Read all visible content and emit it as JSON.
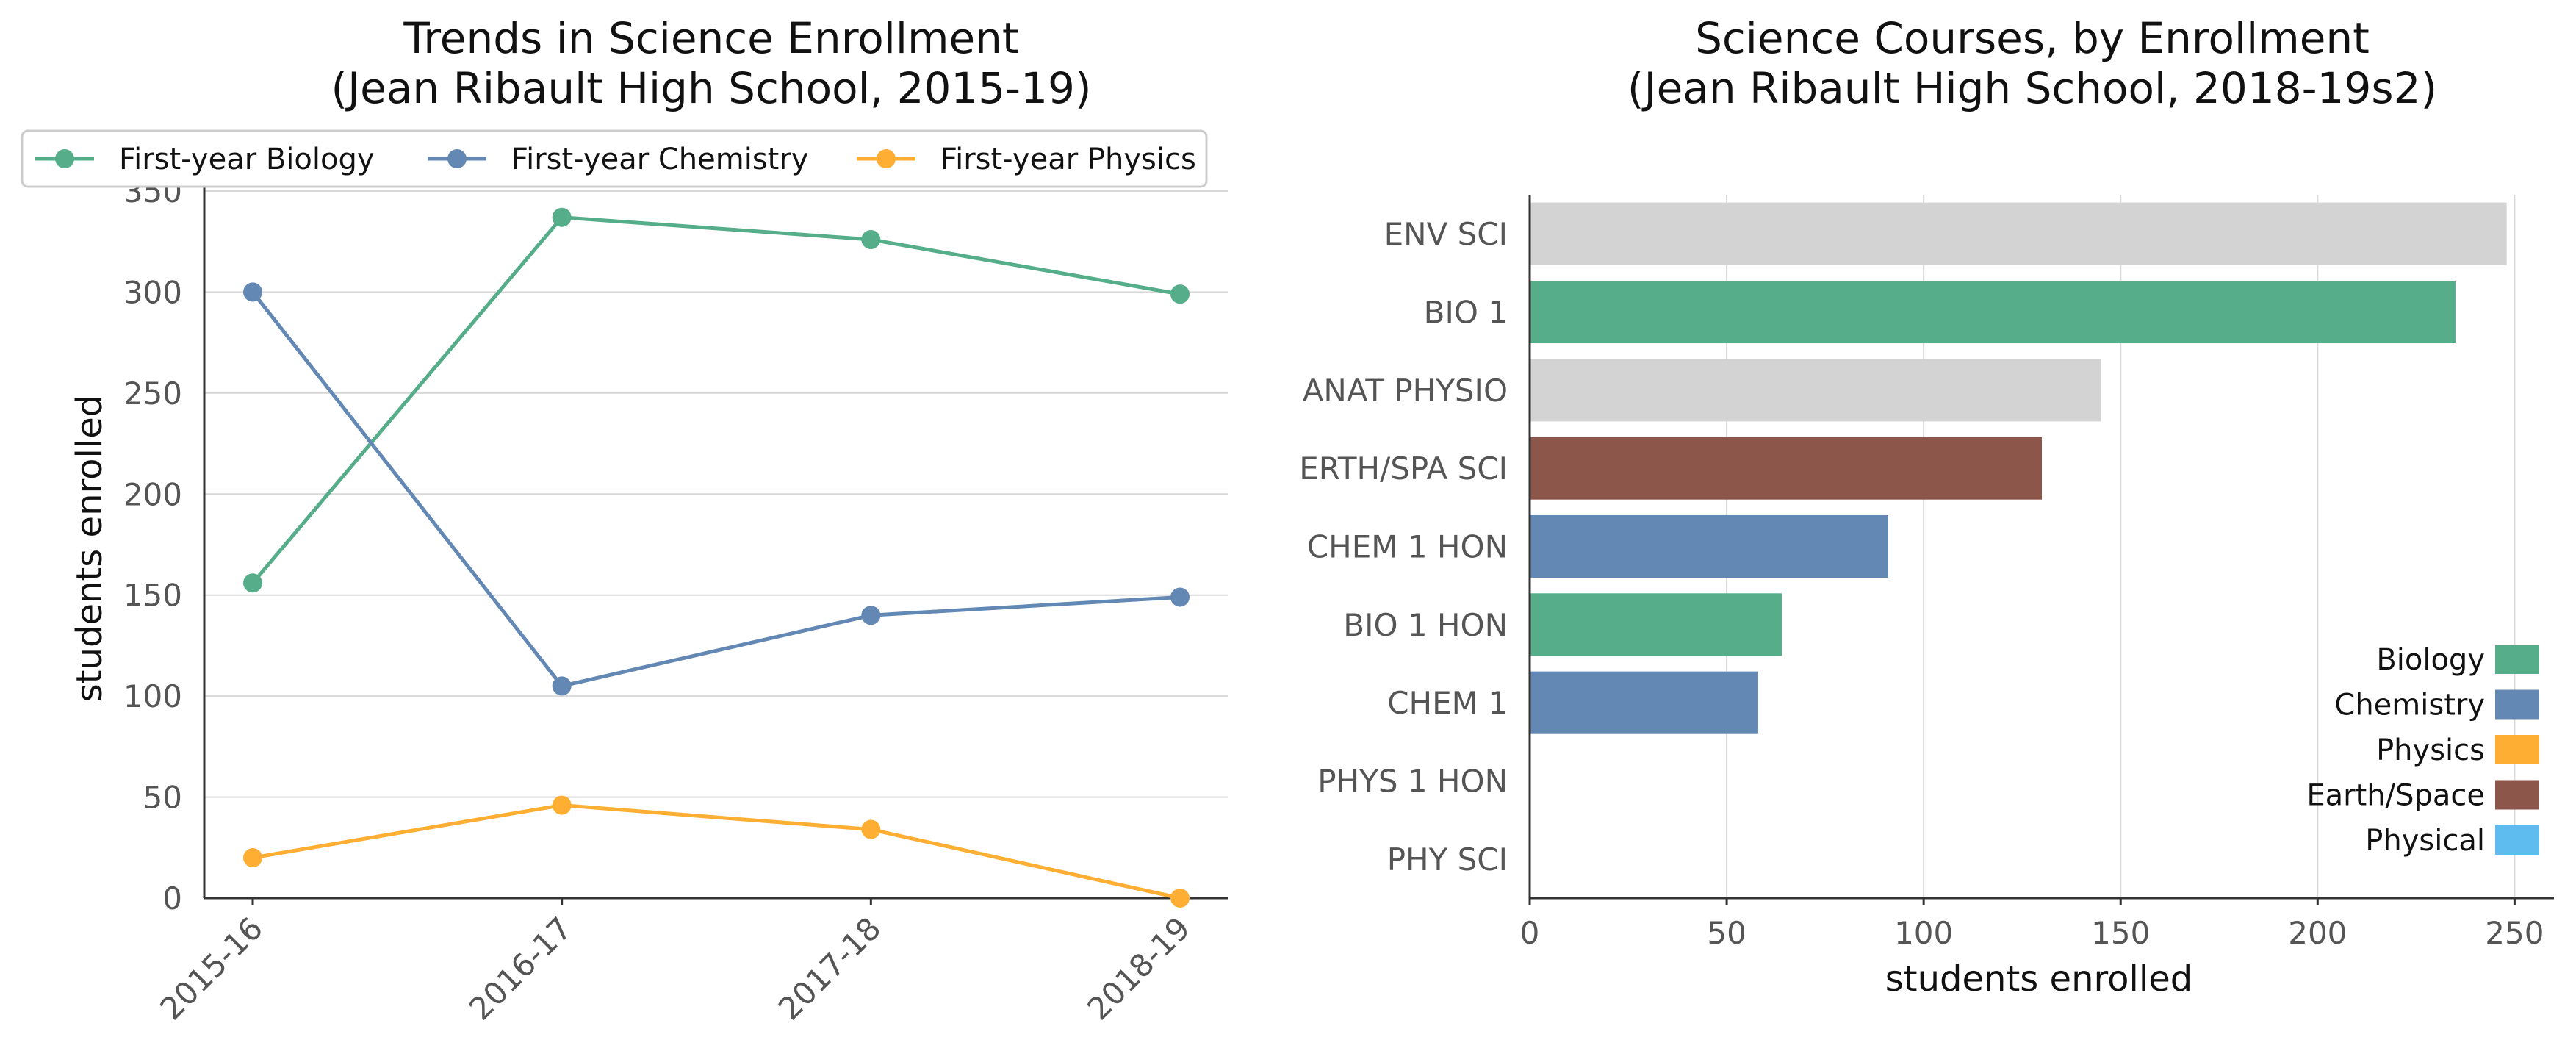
{
  "colors": {
    "biology": "#55ad89",
    "chemistry": "#6388b4",
    "physics": "#ffae34",
    "earth_space": "#8c564b",
    "physical": "#5fbcef",
    "other": "#d3d3d3",
    "grid": "#d9d9d9",
    "axis": "#333333"
  },
  "chart_data": [
    {
      "type": "line",
      "title_line1": "Trends in Science Enrollment",
      "title_line2": "(Jean Ribault High School, 2015-19)",
      "xlabel": "",
      "ylabel": "students enrolled",
      "x": [
        "2015-16",
        "2016-17",
        "2017-18",
        "2018-19"
      ],
      "ylim": [
        0,
        350
      ],
      "yticks": [
        0,
        50,
        100,
        150,
        200,
        250,
        300,
        350
      ],
      "grid": "horizontal",
      "legend_position": "top",
      "series": [
        {
          "name": "First-year Biology",
          "color_key": "biology",
          "values": [
            156,
            337,
            326,
            299
          ]
        },
        {
          "name": "First-year Chemistry",
          "color_key": "chemistry",
          "values": [
            300,
            105,
            140,
            149
          ]
        },
        {
          "name": "First-year Physics",
          "color_key": "physics",
          "values": [
            20,
            46,
            34,
            0
          ]
        }
      ]
    },
    {
      "type": "bar",
      "orientation": "horizontal",
      "title_line1": "Science Courses, by Enrollment",
      "title_line2": "(Jean Ribault High School, 2018-19s2)",
      "xlabel": "students enrolled",
      "ylabel": "",
      "xlim": [
        0,
        260
      ],
      "xticks": [
        0,
        50,
        100,
        150,
        200,
        250
      ],
      "grid": "vertical",
      "legend_position": "bottom-right",
      "categories": [
        "ENV SCI",
        "BIO 1",
        "ANAT PHYSIO",
        "ERTH/SPA SCI",
        "CHEM 1 HON",
        "BIO 1 HON",
        "CHEM 1",
        "PHYS 1 HON",
        "PHY SCI"
      ],
      "values": [
        248,
        235,
        145,
        130,
        91,
        64,
        58,
        0,
        0
      ],
      "bar_color_keys": [
        "other",
        "biology",
        "other",
        "earth_space",
        "chemistry",
        "biology",
        "chemistry",
        "physics",
        "physical"
      ],
      "legend": [
        {
          "label": "Biology",
          "color_key": "biology"
        },
        {
          "label": "Chemistry",
          "color_key": "chemistry"
        },
        {
          "label": "Physics",
          "color_key": "physics"
        },
        {
          "label": "Earth/Space",
          "color_key": "earth_space"
        },
        {
          "label": "Physical",
          "color_key": "physical"
        }
      ]
    }
  ]
}
